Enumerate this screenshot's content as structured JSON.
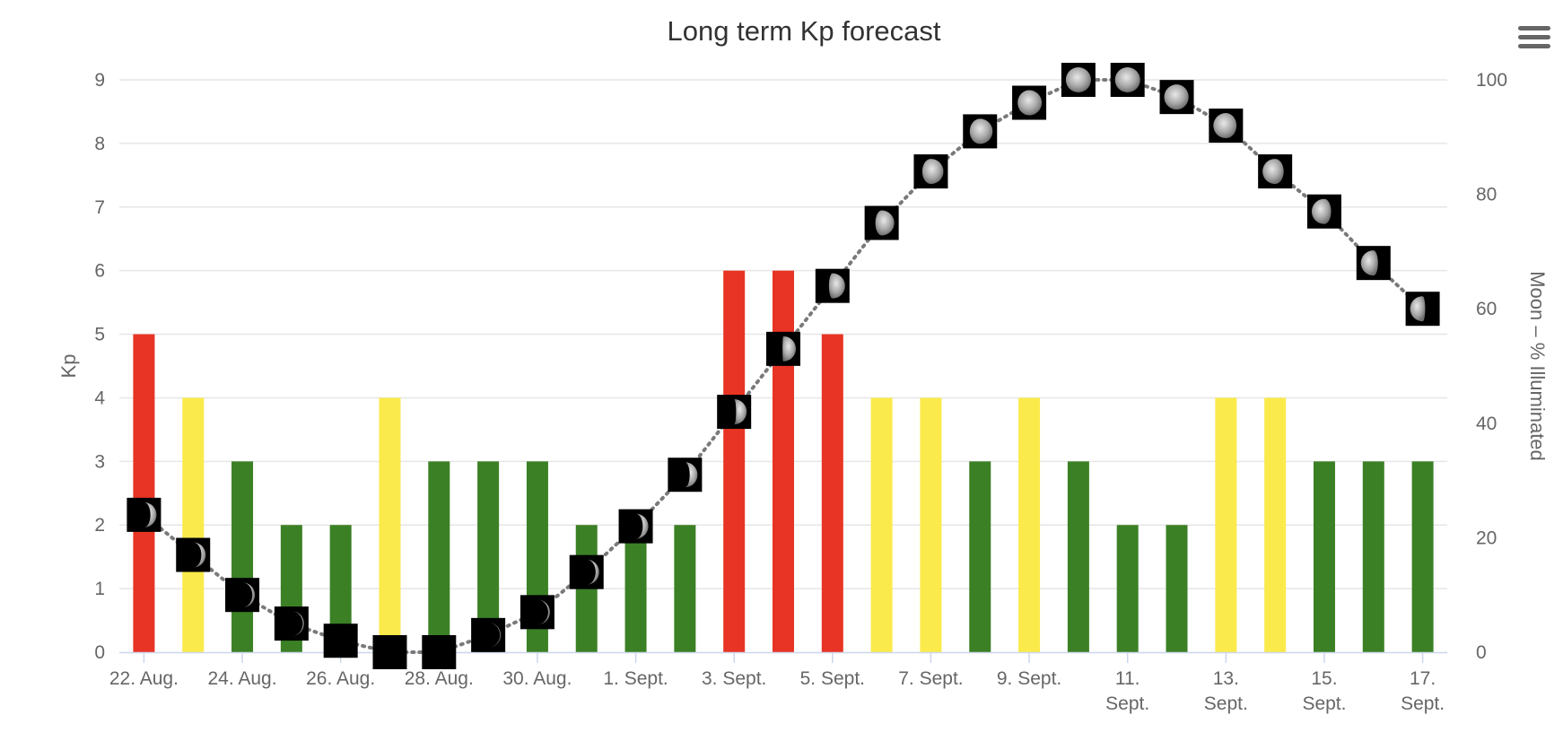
{
  "menu": {
    "icon": "hamburger-menu-icon"
  },
  "colors": {
    "red": "#e83424",
    "yellow": "#fbea4b",
    "green": "#3b8025",
    "grid": "#e6e6e6",
    "moon_line": "#7a7a7a"
  },
  "chart_data": {
    "type": "bar",
    "title": "Long term Kp forecast",
    "ylabel": "Kp",
    "y2label": "Moon – % Illuminated",
    "ylim": [
      0,
      9
    ],
    "y2lim": [
      0,
      100
    ],
    "yticks": [
      "0",
      "1",
      "2",
      "3",
      "4",
      "5",
      "6",
      "7",
      "8",
      "9"
    ],
    "y2ticks": [
      "0",
      "20",
      "40",
      "60",
      "80",
      "100"
    ],
    "xtick_labels": [
      "22. Aug.",
      "24. Aug.",
      "26. Aug.",
      "28. Aug.",
      "30. Aug.",
      "1. Sept.",
      "3. Sept.",
      "5. Sept.",
      "7. Sept.",
      "9. Sept.",
      "11. Sept.",
      "13. Sept.",
      "15. Sept.",
      "17. Sept."
    ],
    "categories": [
      "22. Aug.",
      "23. Aug.",
      "24. Aug.",
      "25. Aug.",
      "26. Aug.",
      "27. Aug.",
      "28. Aug.",
      "29. Aug.",
      "30. Aug.",
      "31. Aug.",
      "1. Sept.",
      "2. Sept.",
      "3. Sept.",
      "4. Sept.",
      "5. Sept.",
      "6. Sept.",
      "7. Sept.",
      "8. Sept.",
      "9. Sept.",
      "10. Sept.",
      "11. Sept.",
      "12. Sept.",
      "13. Sept.",
      "14. Sept.",
      "15. Sept.",
      "16. Sept.",
      "17. Sept."
    ],
    "series": [
      {
        "type": "bar",
        "values": [
          5,
          4,
          3,
          2,
          2,
          4,
          3,
          3,
          3,
          2,
          2,
          2,
          6,
          6,
          5,
          4,
          4,
          3,
          4,
          3,
          2,
          2,
          4,
          4,
          3,
          3,
          3
        ]
      },
      {
        "type": "line",
        "axis": "right",
        "style": "dotted",
        "marker": "moon-phase-icon",
        "values": [
          24,
          17,
          10,
          5,
          2,
          0,
          0,
          3,
          7,
          14,
          22,
          31,
          42,
          53,
          64,
          75,
          84,
          91,
          96,
          100,
          100,
          97,
          92,
          84,
          77,
          68,
          60
        ]
      }
    ]
  }
}
